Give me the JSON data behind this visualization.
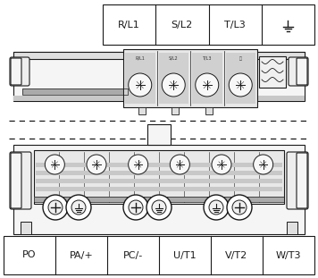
{
  "bg_color": "#ffffff",
  "line_color": "#1a1a1a",
  "gray_color": "#bbbbbb",
  "dark_gray": "#888888",
  "light_gray": "#e8e8e8",
  "top_labels": [
    "R/L1",
    "S/L2",
    "T/L3",
    "⏚"
  ],
  "bottom_labels": [
    "PO",
    "PA/+",
    "PC/-",
    "U/T1",
    "V/T2",
    "W/T3"
  ],
  "small_labels": [
    "R/L1",
    "S/L2",
    "T/L3",
    "⏚"
  ],
  "figw": 3.56,
  "figh": 3.11,
  "dpi": 100
}
